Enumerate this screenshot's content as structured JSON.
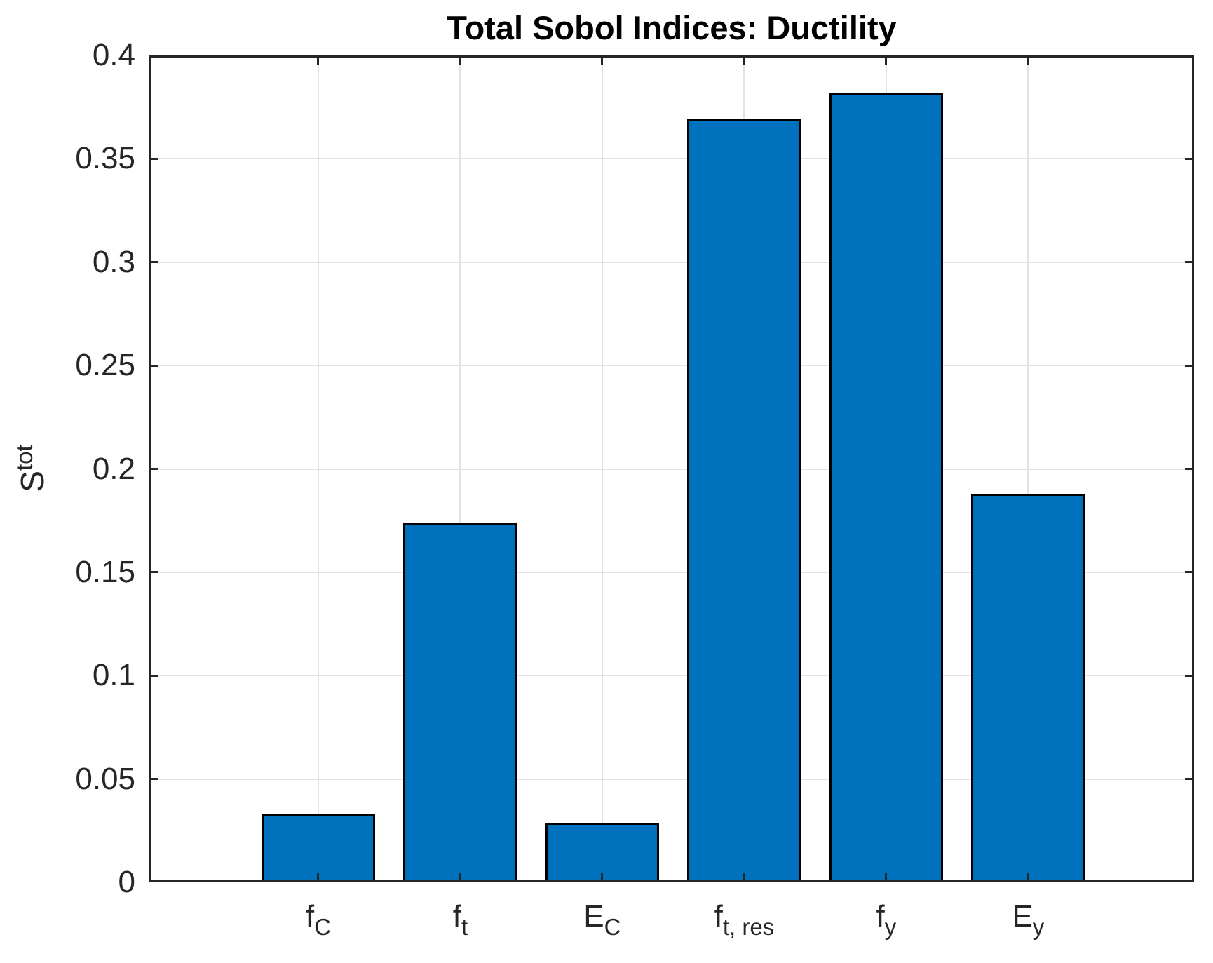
{
  "chart_data": {
    "type": "bar",
    "title": "Total Sobol Indices: Ductility",
    "categories": [
      {
        "main": "f",
        "sub": "C"
      },
      {
        "main": "f",
        "sub": "t"
      },
      {
        "main": "E",
        "sub": "C"
      },
      {
        "main": "f",
        "sub": "t, res"
      },
      {
        "main": "f",
        "sub": "y"
      },
      {
        "main": "E",
        "sub": "y"
      }
    ],
    "values": [
      0.033,
      0.174,
      0.029,
      0.369,
      0.382,
      0.188
    ],
    "xlabel": "",
    "ylabel": {
      "main": "S",
      "sup": "tot"
    },
    "ylim": [
      0,
      0.4
    ],
    "yticks": [
      {
        "value": 0,
        "label": "0"
      },
      {
        "value": 0.05,
        "label": "0.05"
      },
      {
        "value": 0.1,
        "label": "0.1"
      },
      {
        "value": 0.15,
        "label": "0.15"
      },
      {
        "value": 0.2,
        "label": "0.2"
      },
      {
        "value": 0.25,
        "label": "0.25"
      },
      {
        "value": 0.3,
        "label": "0.3"
      },
      {
        "value": 0.35,
        "label": "0.35"
      },
      {
        "value": 0.4,
        "label": "0.4"
      }
    ],
    "grid": true,
    "legend": null,
    "bar_width_fraction": 0.8,
    "colors": {
      "bar_fill": "#0072BD",
      "bar_edge": "#000000",
      "axis": "#262626",
      "grid": "#E2E2E2",
      "tick_text": "#262626",
      "title_text": "#000000",
      "background": "#FFFFFF"
    }
  }
}
